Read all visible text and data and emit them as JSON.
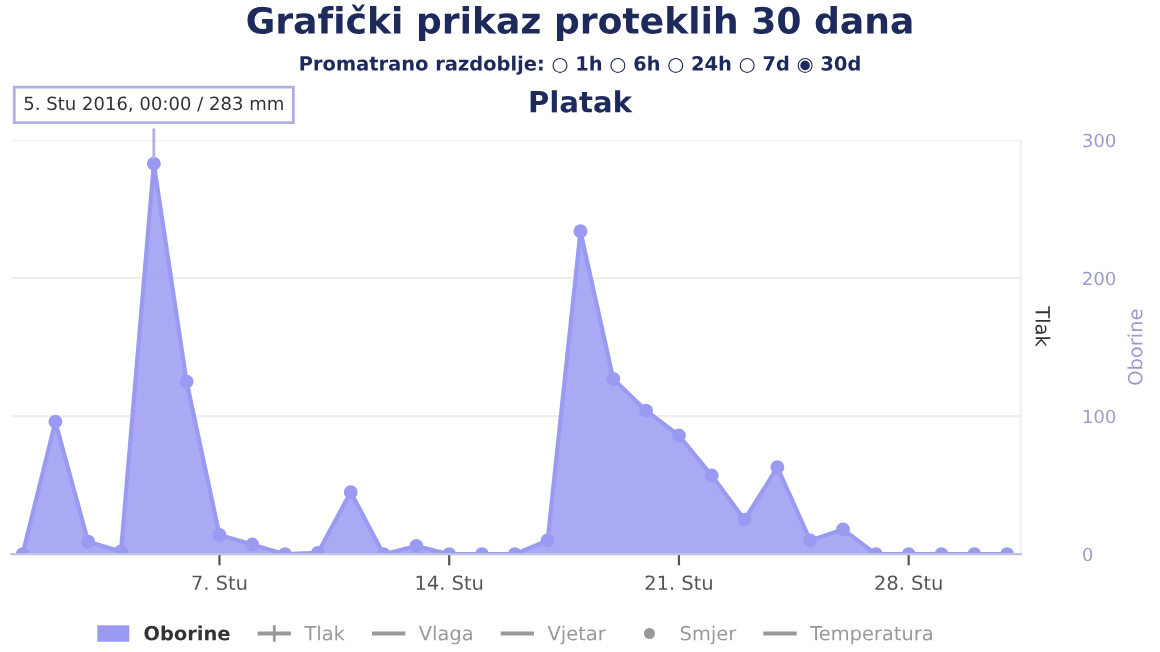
{
  "chart_data": {
    "type": "area",
    "title": "Grafički prikaz proteklih 30 dana",
    "subtitle": "Platak",
    "ylabel": "Oborine",
    "y2label": "Tlak",
    "annotations": [
      "Promatrano razdoblje: ○ 1h ○ 6h ○ 24h ○ 7d ◉ 30d",
      {
        "text": "5. Stu 2016, 00:00 / 283 mm",
        "x": "2016-11-05",
        "y": 283
      }
    ],
    "x": [
      "2016-11-01",
      "2016-11-02",
      "2016-11-03",
      "2016-11-04",
      "2016-11-05",
      "2016-11-06",
      "2016-11-07",
      "2016-11-08",
      "2016-11-09",
      "2016-11-10",
      "2016-11-11",
      "2016-11-12",
      "2016-11-13",
      "2016-11-14",
      "2016-11-15",
      "2016-11-16",
      "2016-11-17",
      "2016-11-18",
      "2016-11-19",
      "2016-11-20",
      "2016-11-21",
      "2016-11-22",
      "2016-11-23",
      "2016-11-24",
      "2016-11-25",
      "2016-11-26",
      "2016-11-27",
      "2016-11-28",
      "2016-11-29",
      "2016-11-30",
      "2016-12-01"
    ],
    "series": [
      {
        "name": "Oborine",
        "color": "#9a9af2",
        "values": [
          0,
          96,
          9,
          2,
          283,
          125,
          14,
          7,
          0,
          1,
          45,
          0,
          6,
          0,
          0,
          0,
          10,
          234,
          127,
          104,
          86,
          57,
          25,
          63,
          10,
          18,
          0,
          0,
          0,
          0,
          0
        ]
      },
      {
        "name": "Tlak",
        "type": "line",
        "marker": "cross",
        "color": "#999999",
        "values": [
          null,
          null,
          null,
          null,
          null,
          null,
          null,
          null,
          null,
          null,
          null,
          null,
          null,
          null,
          null,
          null,
          null,
          null,
          null,
          null,
          null,
          null,
          null,
          null,
          null,
          null,
          null,
          null,
          null,
          null,
          null
        ]
      },
      {
        "name": "Vlaga",
        "type": "line",
        "marker": "none",
        "color": "#999999",
        "values": [
          null,
          null,
          null,
          null,
          null,
          null,
          null,
          null,
          null,
          null,
          null,
          null,
          null,
          null,
          null,
          null,
          null,
          null,
          null,
          null,
          null,
          null,
          null,
          null,
          null,
          null,
          null,
          null,
          null,
          null,
          null
        ]
      },
      {
        "name": "Vjetar",
        "type": "line",
        "marker": "none",
        "color": "#999999",
        "values": [
          null,
          null,
          null,
          null,
          null,
          null,
          null,
          null,
          null,
          null,
          null,
          null,
          null,
          null,
          null,
          null,
          null,
          null,
          null,
          null,
          null,
          null,
          null,
          null,
          null,
          null,
          null,
          null,
          null,
          null,
          null
        ]
      },
      {
        "name": "Smjer",
        "type": "scatter",
        "color": "#999999",
        "values": [
          null,
          null,
          null,
          null,
          null,
          null,
          null,
          null,
          null,
          null,
          null,
          null,
          null,
          null,
          null,
          null,
          null,
          null,
          null,
          null,
          null,
          null,
          null,
          null,
          null,
          null,
          null,
          null,
          null,
          null,
          null
        ]
      },
      {
        "name": "Temperatura",
        "type": "line",
        "marker": "none",
        "color": "#999999",
        "values": [
          null,
          null,
          null,
          null,
          null,
          null,
          null,
          null,
          null,
          null,
          null,
          null,
          null,
          null,
          null,
          null,
          null,
          null,
          null,
          null,
          null,
          null,
          null,
          null,
          null,
          null,
          null,
          null,
          null,
          null,
          null
        ]
      }
    ],
    "xlim": [
      "2016-10-31T16:00",
      "2016-12-01T10:00"
    ],
    "xticks": [
      {
        "value": "2016-11-07",
        "label": "7. Stu"
      },
      {
        "value": "2016-11-14",
        "label": "14. Stu"
      },
      {
        "value": "2016-11-21",
        "label": "21. Stu"
      },
      {
        "value": "2016-11-28",
        "label": "28. Stu"
      }
    ],
    "ylim": [
      0,
      300
    ],
    "yticks": [
      0,
      100,
      200,
      300
    ],
    "grid": "y",
    "legend": "bottom",
    "marker": "circle"
  }
}
